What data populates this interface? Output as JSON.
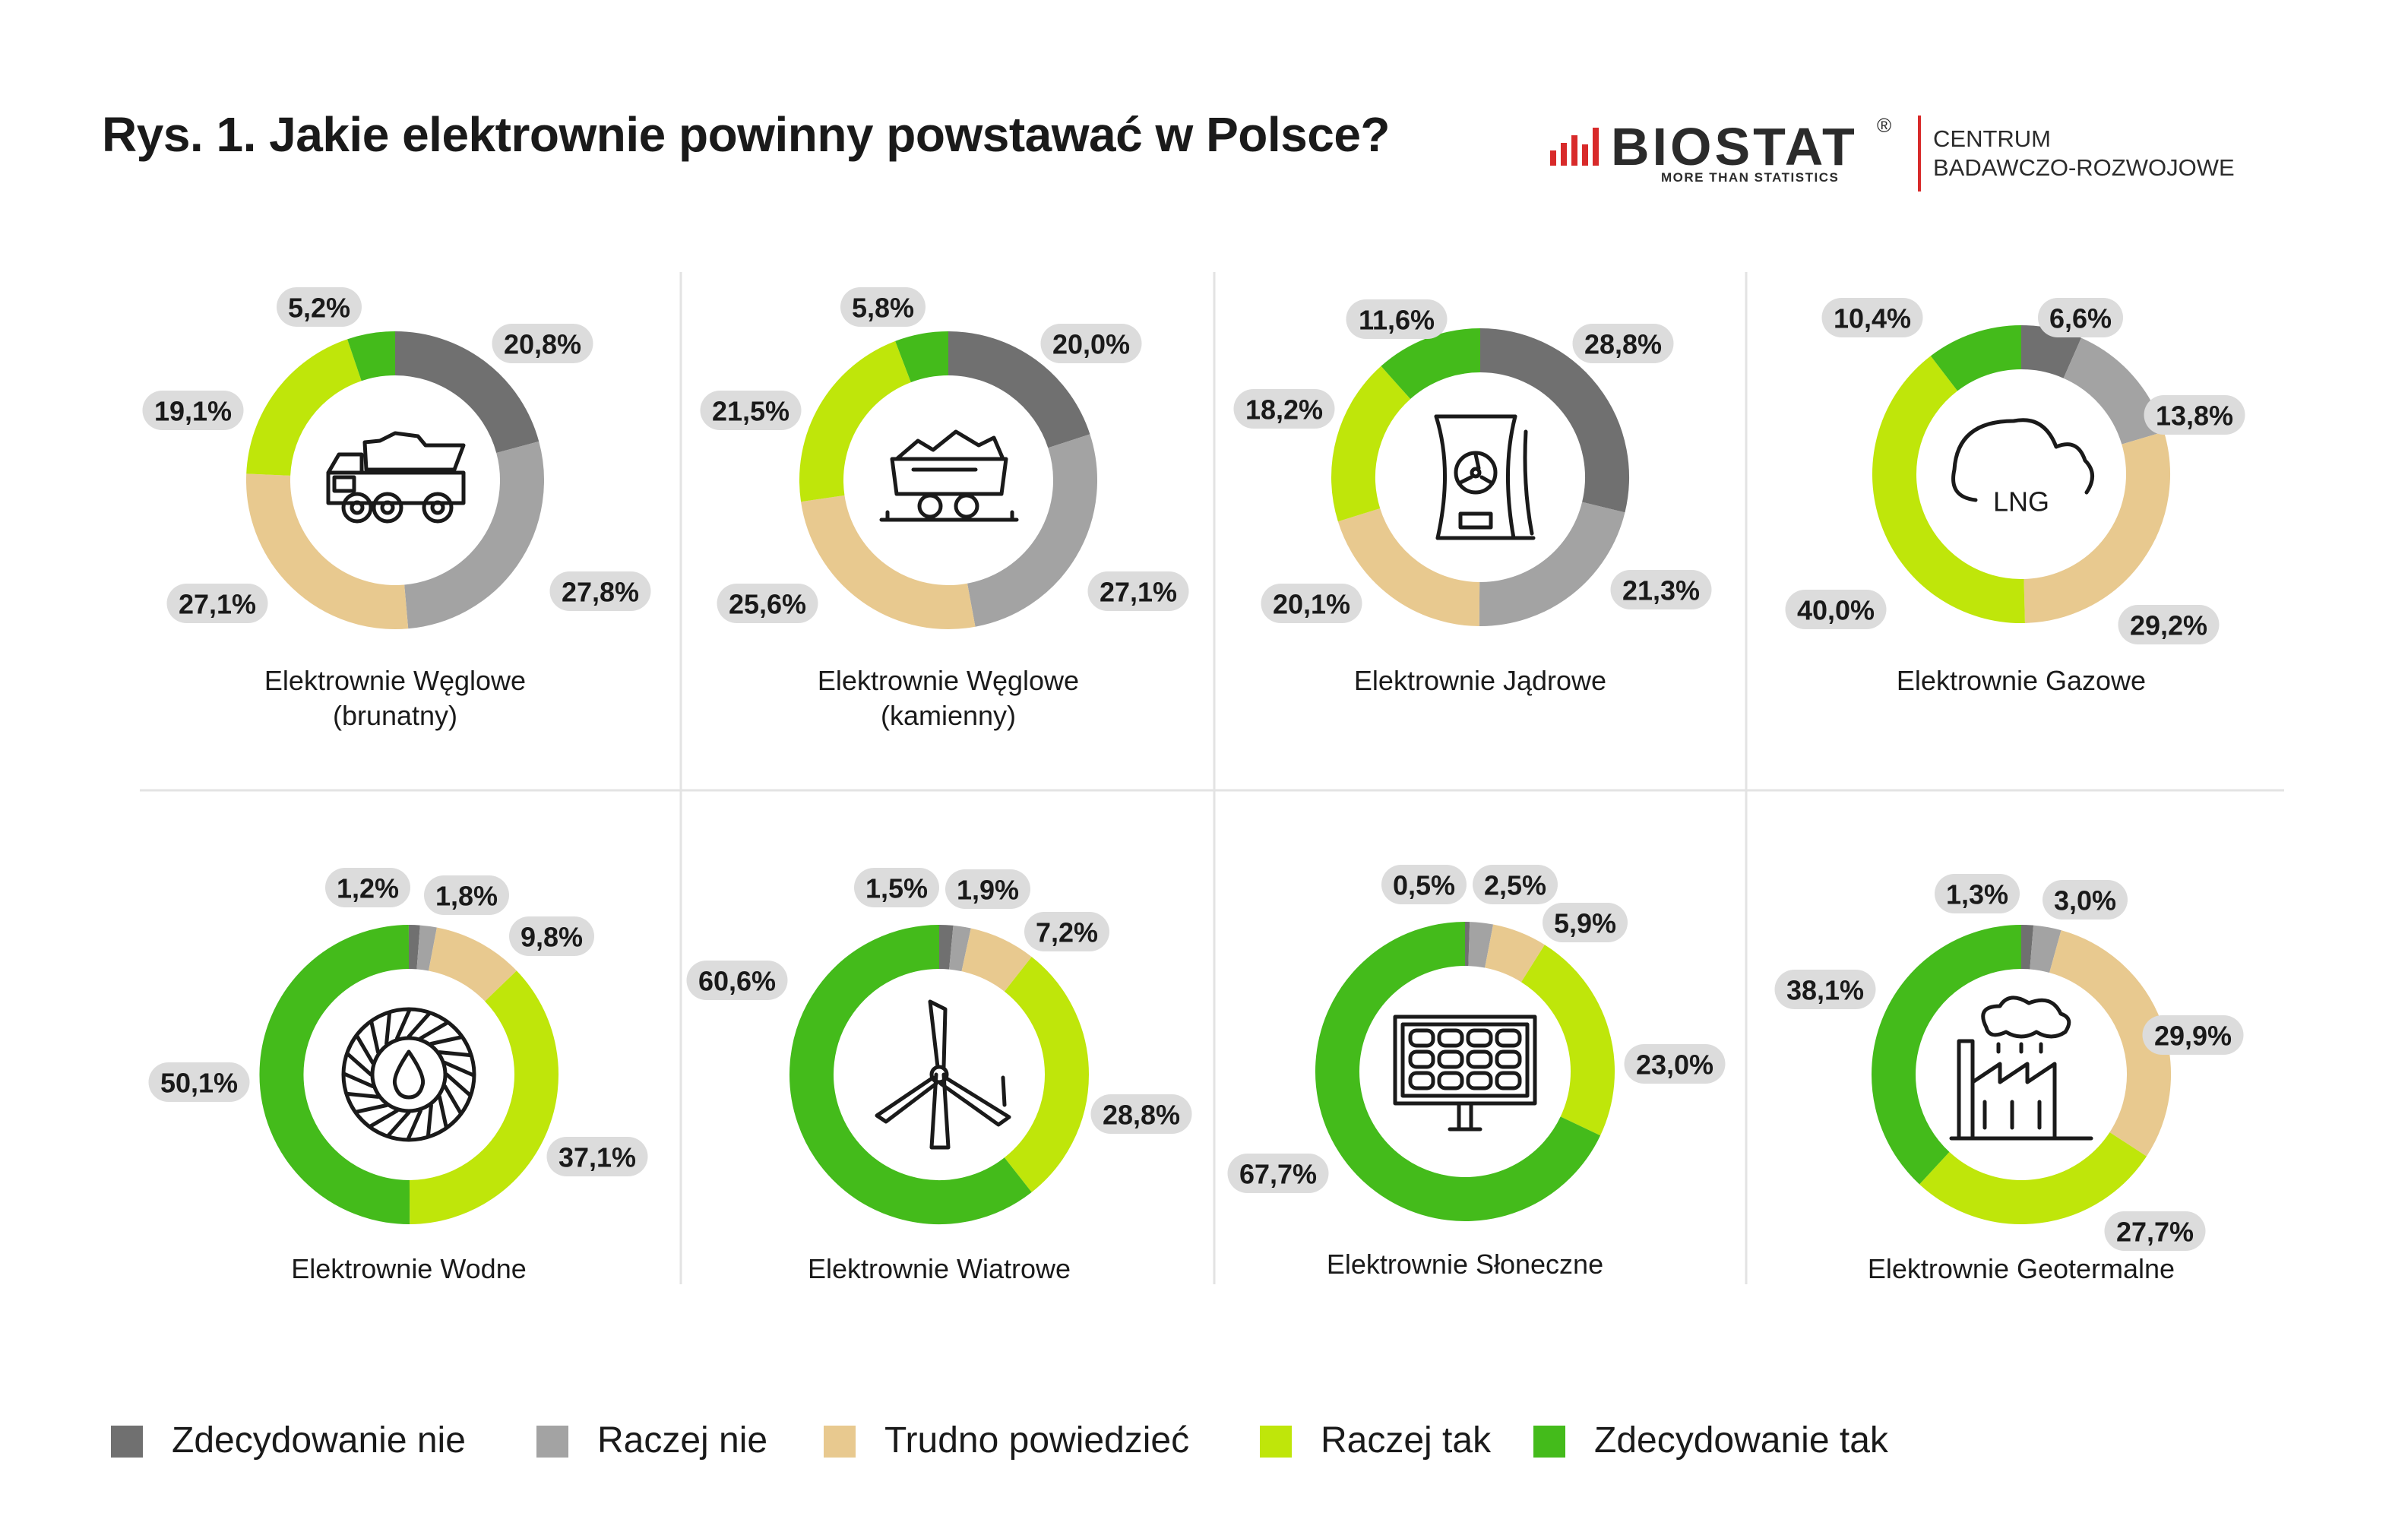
{
  "title": "Rys. 1. Jakie elektrownie powinny powstawać w Polsce?",
  "logo": {
    "brand": "BIOSTAT",
    "registered": "®",
    "tagline": "MORE THAN STATISTICS",
    "centre_line1": "CENTRUM",
    "centre_line2": "BADAWCZO-ROZWOJOWE",
    "accent_color": "#d82a2a"
  },
  "colors": {
    "zdecydowanie_nie": "#707070",
    "raczej_nie": "#a3a3a3",
    "trudno": "#e8c98f",
    "raczej_tak": "#bfe60a",
    "zdecydowanie_tak": "#44bb1b",
    "pill": "#dcdcdc"
  },
  "legend": [
    {
      "label": "Zdecydowanie nie",
      "color": "#707070"
    },
    {
      "label": "Raczej nie",
      "color": "#a3a3a3"
    },
    {
      "label": "Trudno powiedzieć",
      "color": "#e8c98f"
    },
    {
      "label": "Raczej tak",
      "color": "#bfe60a"
    },
    {
      "label": "Zdecydowanie tak",
      "color": "#44bb1b"
    }
  ],
  "chart_data": [
    {
      "type": "pie",
      "title": "Elektrownie Węglowe (brunatny)",
      "title_lines": [
        "Elektrownie Węglowe",
        "(brunatny)"
      ],
      "icon": "dump-truck-icon",
      "categories": [
        "Zdecydowanie nie",
        "Raczej nie",
        "Trudno powiedzieć",
        "Raczej tak",
        "Zdecydowanie tak"
      ],
      "values": [
        20.8,
        27.8,
        27.1,
        19.1,
        5.2
      ],
      "labels": [
        "20,8%",
        "27,8%",
        "27,1%",
        "19,1%",
        "5,2%"
      ]
    },
    {
      "type": "pie",
      "title": "Elektrownie Węglowe (kamienny)",
      "title_lines": [
        "Elektrownie Węglowe",
        "(kamienny)"
      ],
      "icon": "coal-cart-icon",
      "categories": [
        "Zdecydowanie nie",
        "Raczej nie",
        "Trudno powiedzieć",
        "Raczej tak",
        "Zdecydowanie tak"
      ],
      "values": [
        20.0,
        27.1,
        25.6,
        21.5,
        5.8
      ],
      "labels": [
        "20,0%",
        "27,1%",
        "25,6%",
        "21,5%",
        "5,8%"
      ]
    },
    {
      "type": "pie",
      "title": "Elektrownie Jądrowe",
      "title_lines": [
        "Elektrownie Jądrowe"
      ],
      "icon": "nuclear-plant-icon",
      "categories": [
        "Zdecydowanie nie",
        "Raczej nie",
        "Trudno powiedzieć",
        "Raczej tak",
        "Zdecydowanie tak"
      ],
      "values": [
        28.8,
        21.3,
        20.1,
        18.2,
        11.6
      ],
      "labels": [
        "28,8%",
        "21,3%",
        "20,1%",
        "18,2%",
        "11,6%"
      ]
    },
    {
      "type": "pie",
      "title": "Elektrownie Gazowe",
      "title_lines": [
        "Elektrownie Gazowe"
      ],
      "icon": "lng-cloud-icon",
      "icon_text": "LNG",
      "categories": [
        "Zdecydowanie nie",
        "Raczej nie",
        "Trudno powiedzieć",
        "Raczej tak",
        "Zdecydowanie tak"
      ],
      "values": [
        6.6,
        13.8,
        29.2,
        40.0,
        10.4
      ],
      "labels": [
        "6,6%",
        "13,8%",
        "29,2%",
        "40,0%",
        "10,4%"
      ]
    },
    {
      "type": "pie",
      "title": "Elektrownie Wodne",
      "title_lines": [
        "Elektrownie Wodne"
      ],
      "icon": "water-turbine-icon",
      "categories": [
        "Zdecydowanie nie",
        "Raczej nie",
        "Trudno powiedzieć",
        "Raczej tak",
        "Zdecydowanie tak"
      ],
      "values": [
        1.2,
        1.8,
        9.8,
        37.1,
        50.1
      ],
      "labels": [
        "1,2%",
        "1,8%",
        "9,8%",
        "37,1%",
        "50,1%"
      ]
    },
    {
      "type": "pie",
      "title": "Elektrownie Wiatrowe",
      "title_lines": [
        "Elektrownie Wiatrowe"
      ],
      "icon": "wind-turbine-icon",
      "categories": [
        "Zdecydowanie nie",
        "Raczej nie",
        "Trudno powiedzieć",
        "Raczej tak",
        "Zdecydowanie tak"
      ],
      "values": [
        1.5,
        1.9,
        7.2,
        28.8,
        60.6
      ],
      "labels": [
        "1,5%",
        "1,9%",
        "7,2%",
        "28,8%",
        "60,6%"
      ]
    },
    {
      "type": "pie",
      "title": "Elektrownie Słoneczne",
      "title_lines": [
        "Elektrownie Słoneczne"
      ],
      "icon": "solar-panel-icon",
      "categories": [
        "Zdecydowanie nie",
        "Raczej nie",
        "Trudno powiedzieć",
        "Raczej tak",
        "Zdecydowanie tak"
      ],
      "values": [
        0.5,
        2.5,
        5.9,
        23.0,
        67.7
      ],
      "labels": [
        "0,5%",
        "2,5%",
        "5,9%",
        "23,0%",
        "67,7%"
      ]
    },
    {
      "type": "pie",
      "title": "Elektrownie Geotermalne",
      "title_lines": [
        "Elektrownie Geotermalne"
      ],
      "icon": "factory-icon",
      "categories": [
        "Zdecydowanie nie",
        "Raczej nie",
        "Trudno powiedzieć",
        "Raczej tak",
        "Zdecydowanie tak"
      ],
      "values": [
        1.3,
        3.0,
        29.9,
        27.7,
        38.1
      ],
      "labels": [
        "1,3%",
        "3,0%",
        "29,9%",
        "27,7%",
        "38,1%"
      ]
    }
  ]
}
